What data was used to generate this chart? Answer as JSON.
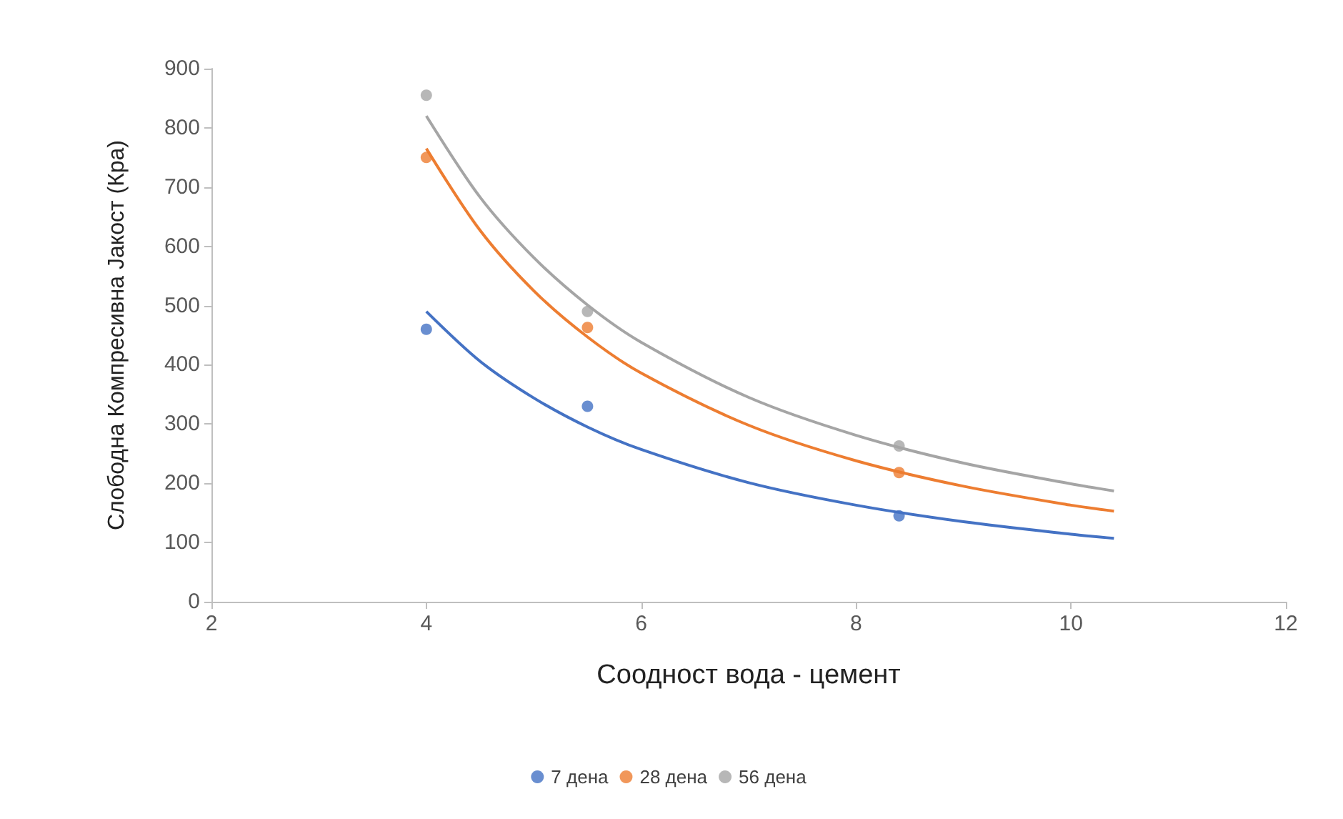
{
  "chart_data": {
    "type": "scatter",
    "xlabel": "Соодност вода - цемент",
    "ylabel": "Слободна Компресивна Јакост (Кра)",
    "xlim": [
      2,
      12
    ],
    "xticks": [
      2,
      4,
      6,
      8,
      10,
      12
    ],
    "ylim": [
      0,
      900
    ],
    "yticks": [
      0,
      100,
      200,
      300,
      400,
      500,
      600,
      700,
      800,
      900
    ],
    "grid": false,
    "legend": "bottom",
    "series": [
      {
        "name": "7 дена",
        "color": "#4472c4",
        "marker": "circle",
        "x": [
          4,
          5.5,
          8.4
        ],
        "values": [
          460,
          330,
          145
        ]
      },
      {
        "name": "28 дена",
        "color": "#ed7d31",
        "marker": "circle",
        "x": [
          4,
          5.5,
          8.4
        ],
        "values": [
          750,
          463,
          218
        ]
      },
      {
        "name": "56 дена",
        "color": "#a5a5a5",
        "marker": "circle",
        "x": [
          4,
          5.5,
          8.4
        ],
        "values": [
          855,
          490,
          263
        ]
      },
      {
        "type": "line",
        "marker": "none",
        "color": "#4472c4",
        "x": [
          4,
          4.5,
          5,
          5.5,
          6,
          7,
          8,
          9,
          10,
          10.4
        ],
        "values": [
          490,
          406,
          344,
          295,
          257,
          201,
          163,
          135,
          114,
          107
        ]
      },
      {
        "type": "line",
        "marker": "none",
        "color": "#ed7d31",
        "x": [
          4,
          4.5,
          5,
          5.5,
          6,
          7,
          8,
          9,
          10,
          10.4
        ],
        "values": [
          765,
          627,
          525,
          447,
          386,
          298,
          238,
          195,
          163,
          153
        ]
      },
      {
        "type": "line",
        "marker": "none",
        "color": "#a5a5a5",
        "x": [
          4,
          4.5,
          5,
          5.5,
          6,
          7,
          8,
          9,
          10,
          10.4
        ],
        "values": [
          820,
          683,
          581,
          501,
          438,
          345,
          281,
          234,
          199,
          187
        ]
      }
    ]
  }
}
